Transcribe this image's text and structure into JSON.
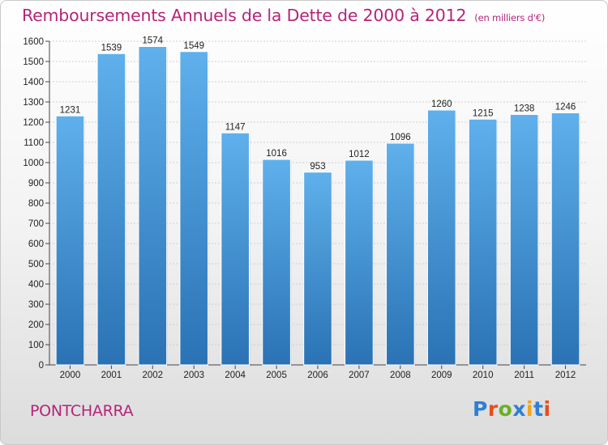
{
  "header": {
    "title": "Remboursements Annuels de la Dette de 2000 à 2012",
    "unit": "(en milliers d'€)"
  },
  "footer": {
    "commune": "PONTCHARRA",
    "brand": "Proxiti",
    "brand_colors": [
      "#2e7fd6",
      "#e84d1c",
      "#6ab023",
      "#2e7fd6",
      "#f2a51a",
      "#2e7fd6",
      "#e84d1c"
    ]
  },
  "colors": {
    "title": "#b5247a",
    "bar_top": "#5fb0ec",
    "bar_bottom": "#2a72b4",
    "grid": "#d0d0d0",
    "text": "#222222"
  },
  "chart_data": {
    "type": "bar",
    "title": "Remboursements Annuels de la Dette de 2000 à 2012",
    "categories": [
      "2000",
      "2001",
      "2002",
      "2003",
      "2004",
      "2005",
      "2006",
      "2007",
      "2008",
      "2009",
      "2010",
      "2011",
      "2012"
    ],
    "values": [
      1231,
      1539,
      1574,
      1549,
      1147,
      1016,
      953,
      1012,
      1096,
      1260,
      1215,
      1238,
      1246
    ],
    "ylim": [
      0,
      1600
    ],
    "yticks": [
      0,
      100,
      200,
      300,
      400,
      500,
      600,
      700,
      800,
      900,
      1000,
      1100,
      1200,
      1300,
      1400,
      1500,
      1600
    ],
    "grid": true,
    "xlabel": "",
    "ylabel": ""
  }
}
